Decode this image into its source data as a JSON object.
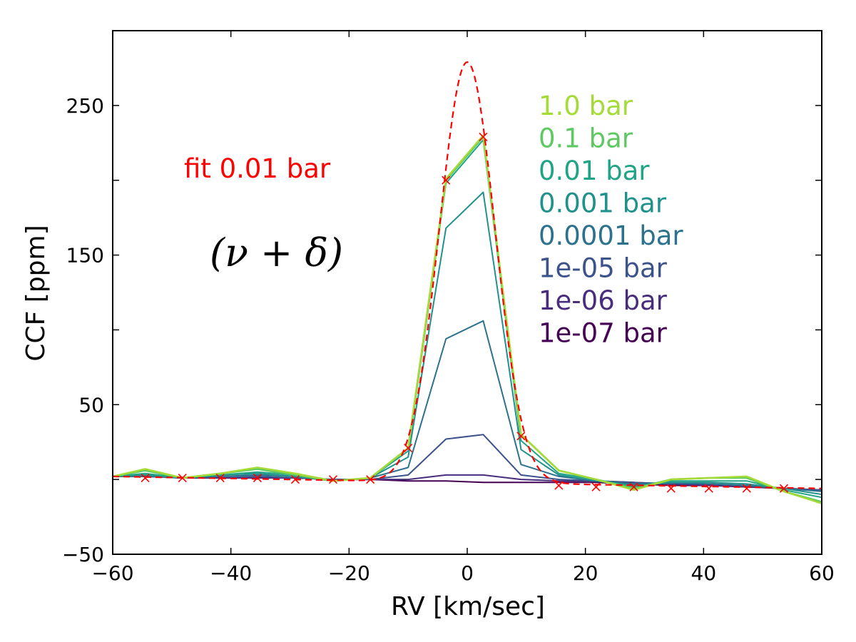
{
  "chart_data": {
    "type": "line",
    "xlabel": "RV [km/sec]",
    "ylabel": "CCF [ppm]",
    "xlim": [
      -60,
      60
    ],
    "ylim": [
      -50,
      300
    ],
    "x_ticks": [
      -60,
      -40,
      -20,
      0,
      20,
      40,
      60
    ],
    "x_tick_labels": [
      "−60",
      "−40",
      "−20",
      "0",
      "20",
      "40",
      "60"
    ],
    "y_ticks": [
      -50,
      50,
      150,
      250
    ],
    "y_tick_labels": [
      "−50",
      "50",
      "150",
      "250"
    ],
    "grid": false,
    "x": [
      -60,
      -54.5,
      -48.2,
      -41.8,
      -35.5,
      -29.1,
      -22.7,
      -16.4,
      -10,
      -3.6,
      2.7,
      9.1,
      15.5,
      21.8,
      28.2,
      34.5,
      40.9,
      47.3,
      53.6,
      60
    ],
    "series": [
      {
        "name": "1.0 bar",
        "color": "#a5db36",
        "values": [
          2,
          7,
          1,
          4,
          8,
          4,
          -1,
          1,
          21,
          201,
          230,
          30,
          6,
          0,
          -7,
          0,
          1,
          2,
          -8,
          -16
        ]
      },
      {
        "name": "0.1 bar",
        "color": "#5ec962",
        "values": [
          2,
          6,
          1,
          4,
          7,
          3,
          -1,
          1,
          21,
          200,
          229,
          30,
          6,
          0,
          -6,
          0,
          1,
          1,
          -8,
          -15
        ]
      },
      {
        "name": "0.01 bar",
        "color": "#20a486",
        "values": [
          2,
          4,
          1,
          3,
          5,
          3,
          -1,
          1,
          19,
          198,
          227,
          26,
          4,
          0,
          -5,
          -1,
          -1,
          -1,
          -7,
          -12
        ]
      },
      {
        "name": "0.001 bar",
        "color": "#21918c",
        "values": [
          2,
          3,
          1,
          3,
          4,
          2,
          -1,
          1,
          15,
          168,
          192,
          20,
          3,
          -1,
          -4,
          -2,
          -2,
          -3,
          -6,
          -10
        ]
      },
      {
        "name": "0.0001 bar",
        "color": "#2c728e",
        "values": [
          2,
          2,
          1,
          2,
          3,
          2,
          -1,
          1,
          8,
          94,
          106,
          10,
          2,
          -1,
          -3,
          -2,
          -3,
          -4,
          -6,
          -8
        ]
      },
      {
        "name": "1e-05 bar",
        "color": "#3b528b",
        "values": [
          2,
          2,
          1,
          2,
          2,
          1,
          0,
          0,
          3,
          27,
          30,
          3,
          0,
          -1,
          -2,
          -3,
          -3,
          -4,
          -6,
          -7
        ]
      },
      {
        "name": "1e-06 bar",
        "color": "#472d7b",
        "values": [
          2,
          2,
          1,
          1,
          1,
          1,
          0,
          0,
          0,
          3,
          3,
          0,
          -1,
          -1,
          -2,
          -3,
          -4,
          -5,
          -6,
          -7
        ]
      },
      {
        "name": "1e-07 bar",
        "color": "#440154",
        "values": [
          2,
          2,
          1,
          1,
          1,
          1,
          0,
          0,
          -1,
          -1,
          -2,
          -2,
          -2,
          -2,
          -3,
          -4,
          -4,
          -5,
          -6,
          -7
        ]
      }
    ],
    "fit": {
      "name": "fit 0.01 bar",
      "color": "#ff0000",
      "amplitude": 281,
      "sigma": 4.7,
      "offset_start": 2,
      "offset_end": -6,
      "x_range": [
        -60,
        60
      ],
      "marker_x": [
        -54.5,
        -48.2,
        -41.8,
        -35.5,
        -29.1,
        -22.7,
        -16.4,
        -10,
        -3.6,
        2.7,
        9.1,
        15.5,
        21.8,
        28.2,
        34.5,
        40.9,
        47.3,
        53.6
      ],
      "marker_y": [
        1,
        1,
        1,
        1,
        0,
        0,
        0,
        21,
        200,
        229,
        29,
        -4,
        -5,
        -5,
        -6,
        -6,
        -6,
        -6
      ]
    },
    "annotations": {
      "fit_label": "fit 0.01 bar",
      "math_label": "(ν + δ)"
    }
  }
}
